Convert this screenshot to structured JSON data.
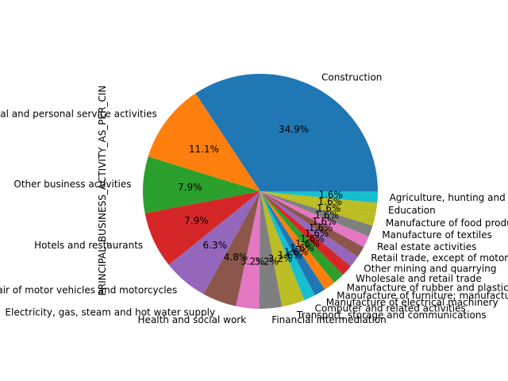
{
  "chart_data": {
    "type": "pie",
    "ylabel": "PRINCIPAL_BUSINESS_ACTIVITY_AS_PER_CIN",
    "start_angle_deg": 0,
    "direction": "counterclockwise",
    "slices": [
      {
        "label": "Construction",
        "value": 34.9,
        "pct_label": "34.9%",
        "color": "#1f77b4"
      },
      {
        "label": "Other community, social and personal service activities",
        "value": 11.1,
        "pct_label": "11.1%",
        "color": "#ff7f0e"
      },
      {
        "label": "Other business activities",
        "value": 7.9,
        "pct_label": "7.9%",
        "color": "#2ca02c"
      },
      {
        "label": "Hotels and restaurants",
        "value": 7.9,
        "pct_label": "7.9%",
        "color": "#d62728"
      },
      {
        "label": "Sale, maintenance and repair of motor vehicles and motorcycles",
        "value": 6.3,
        "pct_label": "6.3%",
        "color": "#9467bd"
      },
      {
        "label": "Electricity, gas, steam and hot water supply",
        "value": 4.8,
        "pct_label": "4.8%",
        "color": "#8c564b"
      },
      {
        "label": "Health and social work",
        "value": 3.2,
        "pct_label": "3.2%",
        "color": "#e377c2"
      },
      {
        "label": "Financial intermediation",
        "value": 3.2,
        "pct_label": "3.2%",
        "color": "#7f7f7f"
      },
      {
        "label": "Transport, storage and communications",
        "value": 3.2,
        "pct_label": "3.2%",
        "color": "#bcbd22"
      },
      {
        "label": "Computer and related activities",
        "value": 1.6,
        "pct_label": "1.6%",
        "color": "#17becf"
      },
      {
        "label": "Manufacture of electrical machinery",
        "value": 1.6,
        "pct_label": "1.6%",
        "color": "#1f77b4"
      },
      {
        "label": "Manufacture of furniture; manufacturing",
        "value": 1.6,
        "pct_label": "1.6%",
        "color": "#ff7f0e"
      },
      {
        "label": "Manufacture of rubber and plastics",
        "value": 1.6,
        "pct_label": "1.6%",
        "color": "#2ca02c"
      },
      {
        "label": "Wholesale and retail trade",
        "value": 1.6,
        "pct_label": "1.6%",
        "color": "#d62728"
      },
      {
        "label": "Other mining and quarrying",
        "value": 1.6,
        "pct_label": "1.6%",
        "color": "#9467bd"
      },
      {
        "label": "Retail trade, except of motor vehicles",
        "value": 1.6,
        "pct_label": "1.6%",
        "color": "#8c564b"
      },
      {
        "label": "Real estate activities",
        "value": 1.6,
        "pct_label": "1.6%",
        "color": "#e377c2"
      },
      {
        "label": "Manufacture of textiles",
        "value": 1.6,
        "pct_label": "1.6%",
        "color": "#7f7f7f"
      },
      {
        "label": "Manufacture of food products",
        "value": 1.6,
        "pct_label": "1.6%",
        "color": "#bcbd22"
      },
      {
        "label": "Education",
        "value": 1.6,
        "pct_label": "1.6%",
        "color": "#bcbd22"
      },
      {
        "label": "Agriculture, hunting and related activities",
        "value": 1.6,
        "pct_label": "1.6%",
        "color": "#17becf"
      }
    ]
  }
}
